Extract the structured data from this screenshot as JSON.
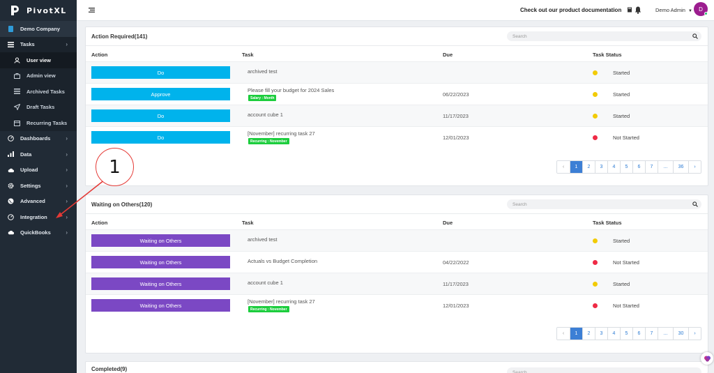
{
  "brand": {
    "name": "PivotXL"
  },
  "sidebar": {
    "company": "Demo Company",
    "tasks": "Tasks",
    "sub": [
      "User view",
      "Admin view",
      "Archived Tasks",
      "Draft Tasks",
      "Recurring Tasks"
    ],
    "items": [
      "Dashboards",
      "Data",
      "Upload",
      "Settings",
      "Advanced",
      "Integration",
      "QuickBooks"
    ]
  },
  "annotation": {
    "number": "1"
  },
  "topbar": {
    "doc_link": "Check out our product documentation",
    "user": "Demo Admin",
    "avatar": "D"
  },
  "columns": {
    "action": "Action",
    "task": "Task",
    "due": "Due",
    "status": "Task Status"
  },
  "search_placeholder": "Search",
  "action_required": {
    "title": "Action Required(141)",
    "rows": [
      {
        "action": "Do",
        "task": "archived test",
        "tag": "",
        "due": "",
        "status": "Started",
        "status_color": "#f2cb06"
      },
      {
        "action": "Approve",
        "task": "Please fill your budget for 2024 Sales",
        "tag": "Salary : Month",
        "due": "06/22/2023",
        "status": "Started",
        "status_color": "#f2cb06"
      },
      {
        "action": "Do",
        "task": "account cube 1",
        "tag": "",
        "due": "11/17/2023",
        "status": "Started",
        "status_color": "#f2cb06"
      },
      {
        "action": "Do",
        "task": "[November] recurring task 27",
        "tag": "Recurring : November",
        "due": "12/01/2023",
        "status": "Not Started",
        "status_color": "#ef2a45"
      }
    ],
    "pages": [
      "‹",
      "1",
      "2",
      "3",
      "4",
      "5",
      "6",
      "7",
      "...",
      "36",
      "›"
    ]
  },
  "waiting": {
    "title": "Waiting on Others(120)",
    "rows": [
      {
        "action": "Waiting on Others",
        "task": "archived test",
        "tag": "",
        "due": "",
        "status": "Started",
        "status_color": "#f2cb06"
      },
      {
        "action": "Waiting on Others",
        "task": "Actuals vs Budget Completion",
        "tag": "",
        "due": "04/22/2022",
        "status": "Not Started",
        "status_color": "#ef2a45"
      },
      {
        "action": "Waiting on Others",
        "task": "account cube 1",
        "tag": "",
        "due": "11/17/2023",
        "status": "Started",
        "status_color": "#f2cb06"
      },
      {
        "action": "Waiting on Others",
        "task": "[November] recurring task 27",
        "tag": "Recurring : November",
        "due": "12/01/2023",
        "status": "Not Started",
        "status_color": "#ef2a45"
      }
    ],
    "pages": [
      "‹",
      "1",
      "2",
      "3",
      "4",
      "5",
      "6",
      "7",
      "...",
      "30",
      "›"
    ]
  },
  "completed": {
    "title": "Completed(9)"
  },
  "colors": {
    "sidebar": "#212b36",
    "do_button": "#00b3ec",
    "waiting_button": "#7b48c4",
    "tag": "#1ccd3d",
    "page_active": "#3c7fd5"
  }
}
